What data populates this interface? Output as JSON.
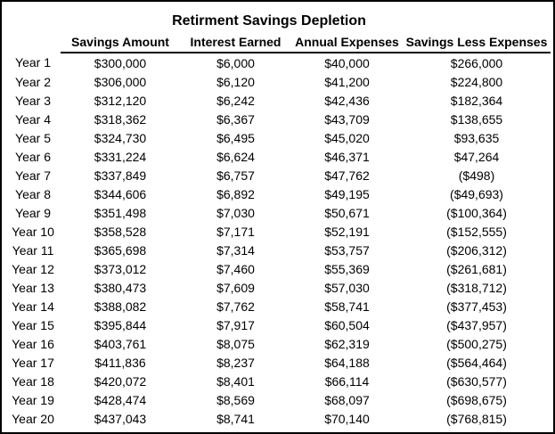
{
  "chart_data": {
    "type": "table",
    "title": "Retirment Savings Depletion",
    "row_label_header": "",
    "columns": [
      "Savings Amount",
      "Interest Earned",
      "Annual Expenses",
      "Savings Less Expenses"
    ],
    "rows": [
      {
        "year": "Year 1",
        "values": [
          "$300,000",
          "$6,000",
          "$40,000",
          "$266,000"
        ]
      },
      {
        "year": "Year 2",
        "values": [
          "$306,000",
          "$6,120",
          "$41,200",
          "$224,800"
        ]
      },
      {
        "year": "Year 3",
        "values": [
          "$312,120",
          "$6,242",
          "$42,436",
          "$182,364"
        ]
      },
      {
        "year": "Year 4",
        "values": [
          "$318,362",
          "$6,367",
          "$43,709",
          "$138,655"
        ]
      },
      {
        "year": "Year 5",
        "values": [
          "$324,730",
          "$6,495",
          "$45,020",
          "$93,635"
        ]
      },
      {
        "year": "Year 6",
        "values": [
          "$331,224",
          "$6,624",
          "$46,371",
          "$47,264"
        ]
      },
      {
        "year": "Year 7",
        "values": [
          "$337,849",
          "$6,757",
          "$47,762",
          "($498)"
        ]
      },
      {
        "year": "Year 8",
        "values": [
          "$344,606",
          "$6,892",
          "$49,195",
          "($49,693)"
        ]
      },
      {
        "year": "Year 9",
        "values": [
          "$351,498",
          "$7,030",
          "$50,671",
          "($100,364)"
        ]
      },
      {
        "year": "Year 10",
        "values": [
          "$358,528",
          "$7,171",
          "$52,191",
          "($152,555)"
        ]
      },
      {
        "year": "Year 11",
        "values": [
          "$365,698",
          "$7,314",
          "$53,757",
          "($206,312)"
        ]
      },
      {
        "year": "Year 12",
        "values": [
          "$373,012",
          "$7,460",
          "$55,369",
          "($261,681)"
        ]
      },
      {
        "year": "Year 13",
        "values": [
          "$380,473",
          "$7,609",
          "$57,030",
          "($318,712)"
        ]
      },
      {
        "year": "Year 14",
        "values": [
          "$388,082",
          "$7,762",
          "$58,741",
          "($377,453)"
        ]
      },
      {
        "year": "Year 15",
        "values": [
          "$395,844",
          "$7,917",
          "$60,504",
          "($437,957)"
        ]
      },
      {
        "year": "Year 16",
        "values": [
          "$403,761",
          "$8,075",
          "$62,319",
          "($500,275)"
        ]
      },
      {
        "year": "Year 17",
        "values": [
          "$411,836",
          "$8,237",
          "$64,188",
          "($564,464)"
        ]
      },
      {
        "year": "Year 18",
        "values": [
          "$420,072",
          "$8,401",
          "$66,114",
          "($630,577)"
        ]
      },
      {
        "year": "Year 19",
        "values": [
          "$428,474",
          "$8,569",
          "$68,097",
          "($698,675)"
        ]
      },
      {
        "year": "Year 20",
        "values": [
          "$437,043",
          "$8,741",
          "$70,140",
          "($768,815)"
        ]
      }
    ],
    "notes": "Negative values shown in parentheses and red"
  },
  "colors": {
    "negative_value": "#ff0000",
    "text": "#000000",
    "border": "#000000",
    "background": "#ffffff"
  }
}
